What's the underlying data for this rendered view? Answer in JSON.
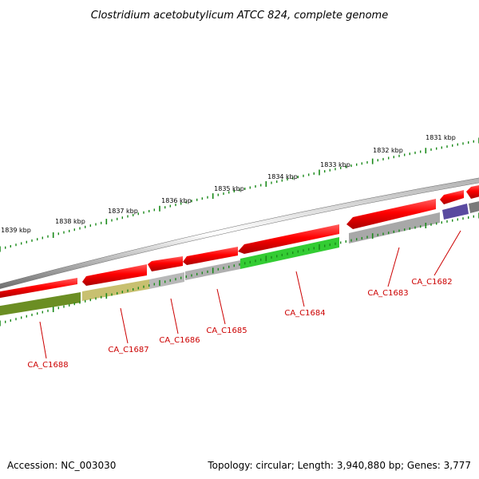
{
  "title": "Clostridium acetobutylicum ATCC 824, complete genome",
  "footer": {
    "accession": "Accession: NC_003030",
    "summary": "Topology: circular; Length: 3,940,880 bp; Genes: 3,777"
  },
  "ruler": {
    "labels": [
      "1831 kbp",
      "1832 kbp",
      "1833 kbp",
      "1834 kbp",
      "1835 kbp",
      "1836 kbp",
      "1837 kbp",
      "1838 kbp",
      "1839 kbp"
    ]
  },
  "genes": [
    {
      "label": "CA_C1682",
      "color": "#5a4aa0"
    },
    {
      "label": "CA_C1683",
      "color": "#a8a8a8"
    },
    {
      "label": "CA_C1684",
      "color": "#33cc33"
    },
    {
      "label": "CA_C1685",
      "color": "#b0b0b0"
    },
    {
      "label": "CA_C1686",
      "color": "#b8b8b8"
    },
    {
      "label": "CA_C1687",
      "color": "#c8c070"
    },
    {
      "label": "CA_C1688",
      "color": "#6b8e23"
    }
  ],
  "colors": {
    "forward_feature": "#ee0000",
    "backbone": "#888888",
    "tick": "#1a8a1a",
    "label": "#cc0000"
  }
}
